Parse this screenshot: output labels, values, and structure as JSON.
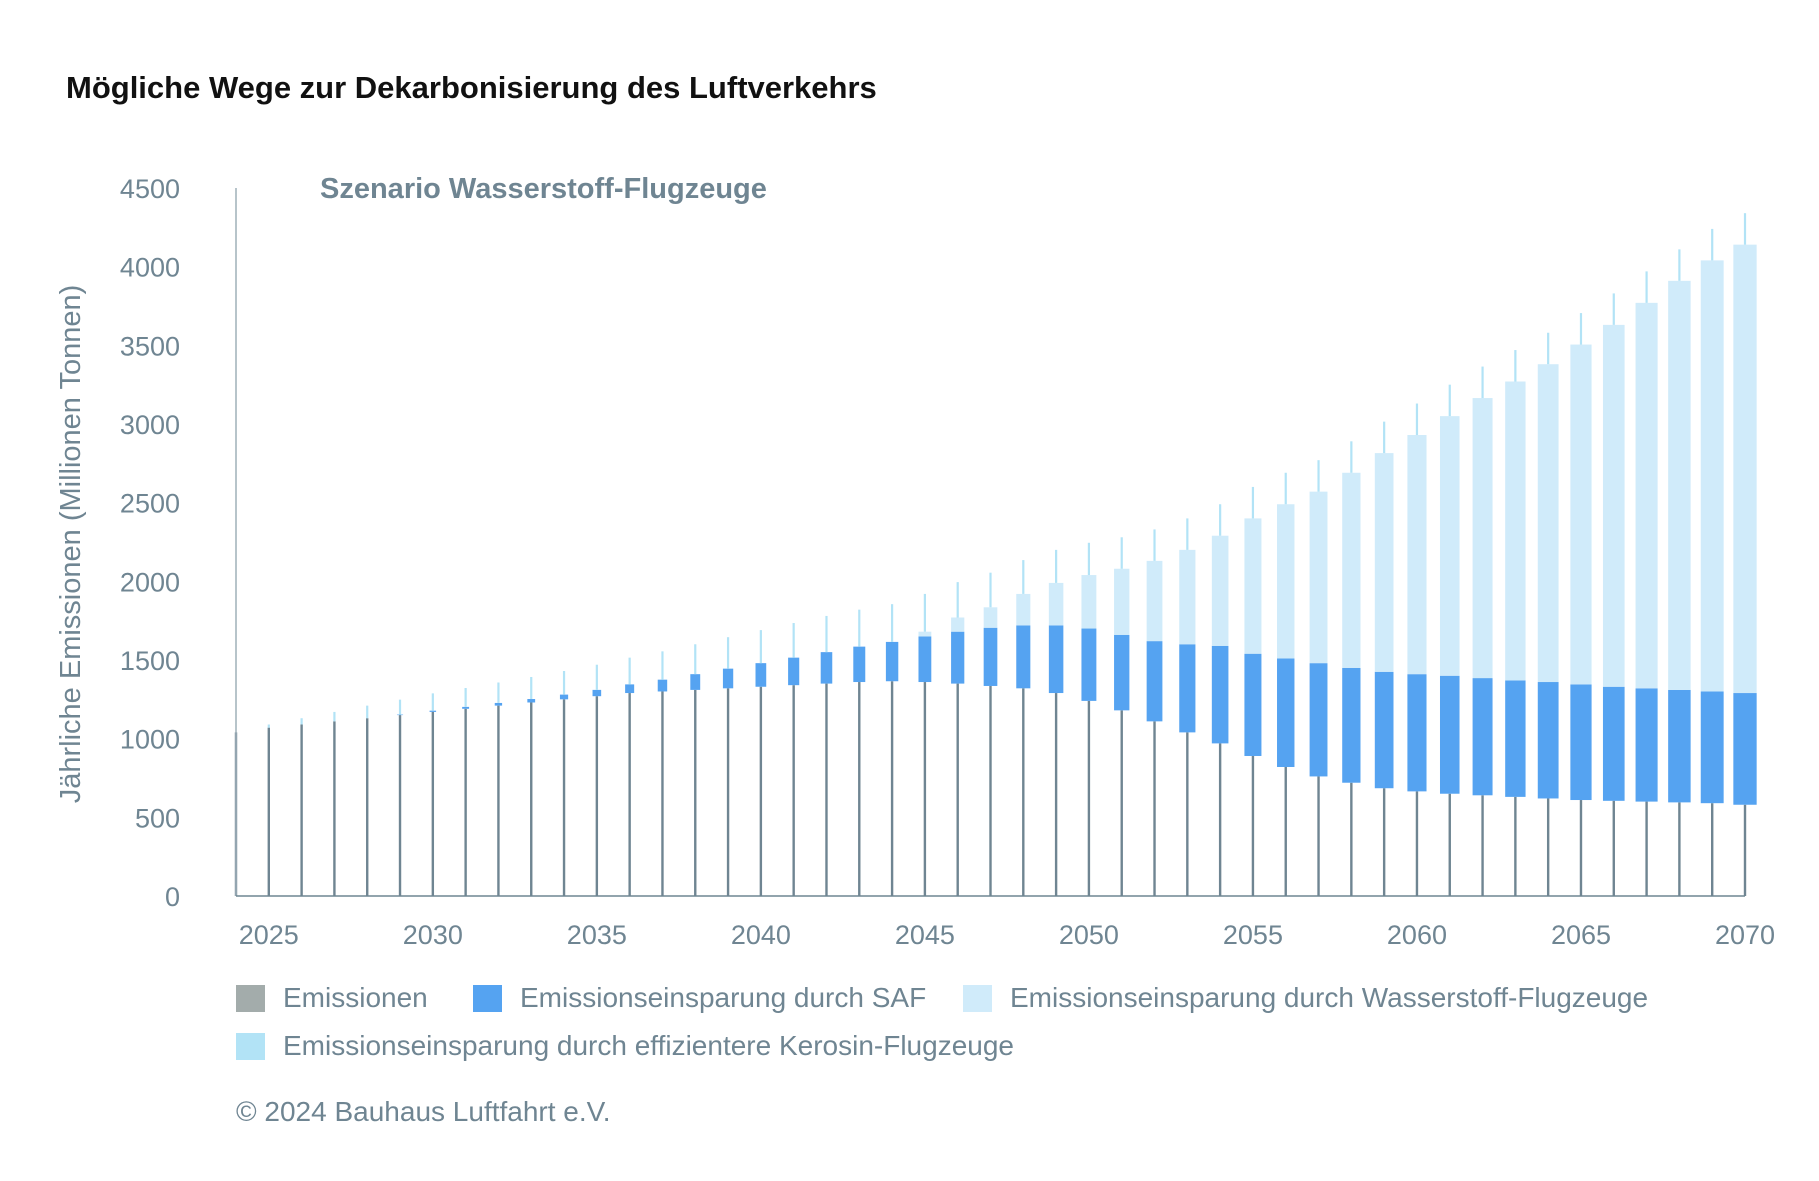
{
  "title": "Mögliche Wege zur Dekarbonisierung des Luftverkehrs",
  "chart_data": {
    "type": "bar",
    "stacked": true,
    "title": "Szenario Wasserstoff-Flugzeuge",
    "ylabel": "Jährliche Emissionen (Millionen Tonnen)",
    "xlabel": "",
    "ylim": [
      0,
      4500
    ],
    "xlim": [
      2024,
      2070
    ],
    "yticks": [
      0,
      500,
      1000,
      1500,
      2000,
      2500,
      3000,
      3500,
      4000,
      4500
    ],
    "yticklabels": [
      "0",
      "500",
      "1000",
      "1500",
      "2000",
      "2500",
      "3000",
      "3500",
      "4000",
      "4500"
    ],
    "xticks": [
      2025,
      2030,
      2035,
      2040,
      2045,
      2050,
      2055,
      2060,
      2065,
      2070
    ],
    "xticklabels": [
      "2025",
      "2030",
      "2035",
      "2040",
      "2045",
      "2050",
      "2055",
      "2060",
      "2065",
      "2070"
    ],
    "x": [
      2024,
      2025,
      2026,
      2027,
      2028,
      2029,
      2030,
      2031,
      2032,
      2033,
      2034,
      2035,
      2036,
      2037,
      2038,
      2039,
      2040,
      2041,
      2042,
      2043,
      2044,
      2045,
      2046,
      2047,
      2048,
      2049,
      2050,
      2051,
      2052,
      2053,
      2054,
      2055,
      2056,
      2057,
      2058,
      2059,
      2060,
      2061,
      2062,
      2063,
      2064,
      2065,
      2066,
      2067,
      2068,
      2069,
      2070
    ],
    "series": [
      {
        "name": "Emissionen",
        "color": "#6f8592",
        "values": [
          1040,
          1070,
          1090,
          1110,
          1130,
          1150,
          1170,
          1190,
          1210,
          1230,
          1250,
          1270,
          1290,
          1300,
          1310,
          1320,
          1330,
          1340,
          1350,
          1360,
          1365,
          1360,
          1350,
          1335,
          1320,
          1290,
          1240,
          1180,
          1110,
          1040,
          970,
          890,
          820,
          760,
          720,
          685,
          665,
          650,
          640,
          630,
          620,
          610,
          605,
          600,
          595,
          590,
          580
        ]
      },
      {
        "name": "Emissionseinsparung durch SAF",
        "color": "#55a3f1",
        "values": [
          0,
          0,
          0,
          0,
          0,
          3,
          8,
          12,
          17,
          22,
          30,
          40,
          55,
          75,
          100,
          125,
          150,
          175,
          200,
          225,
          250,
          290,
          330,
          370,
          400,
          430,
          460,
          480,
          510,
          560,
          620,
          650,
          690,
          720,
          730,
          740,
          745,
          750,
          745,
          740,
          740,
          735,
          725,
          720,
          715,
          710,
          710
        ]
      },
      {
        "name": "Emissionseinsparung durch Wasserstoff-Flugzeuge",
        "color": "#d0ebfa",
        "values": [
          0,
          0,
          0,
          0,
          0,
          0,
          0,
          0,
          0,
          0,
          0,
          0,
          0,
          0,
          0,
          0,
          0,
          0,
          0,
          0,
          0,
          30,
          90,
          130,
          200,
          270,
          340,
          420,
          510,
          600,
          700,
          860,
          980,
          1090,
          1240,
          1390,
          1520,
          1650,
          1780,
          1900,
          2020,
          2160,
          2300,
          2450,
          2600,
          2740,
          2850
        ]
      },
      {
        "name": "Emissionseinsparung durch effizientere Kerosin-Flugzeuge",
        "color": "#b2e3f6",
        "values": [
          0,
          20,
          40,
          60,
          80,
          95,
          110,
          120,
          130,
          140,
          150,
          160,
          170,
          180,
          190,
          200,
          210,
          220,
          230,
          235,
          240,
          240,
          225,
          220,
          215,
          210,
          205,
          200,
          200,
          200,
          200,
          200,
          200,
          200,
          200,
          200,
          200,
          200,
          200,
          200,
          200,
          200,
          200,
          200,
          200,
          200,
          200
        ]
      }
    ],
    "legend": [
      {
        "label": "Emissionen",
        "color": "#a3acab"
      },
      {
        "label": "Emissionseinsparung durch SAF",
        "color": "#55a3f1"
      },
      {
        "label": "Emissionseinsparung durch Wasserstoff-Flugzeuge",
        "color": "#d0ebfa"
      },
      {
        "label": "Emissionseinsparung durch effizientere Kerosin-Flugzeuge",
        "color": "#b2e3f6"
      }
    ]
  },
  "copyright": "© 2024 Bauhaus Luftfahrt e.V."
}
